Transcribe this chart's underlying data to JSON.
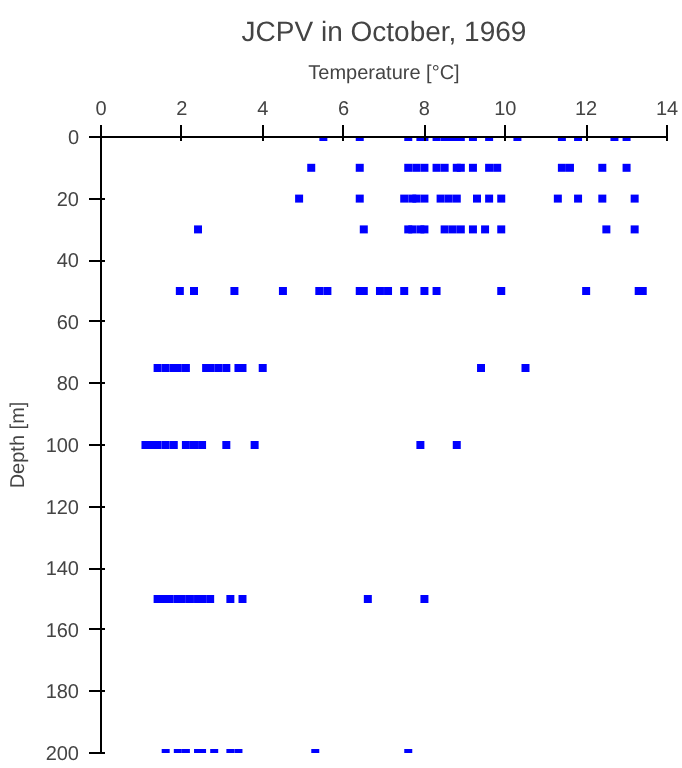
{
  "chart_data": {
    "type": "scatter",
    "title": "JCPV in October, 1969",
    "xlabel": "Temperature [°C]",
    "ylabel": "Depth [m]",
    "marker": "square",
    "grid": false,
    "xlim": [
      0,
      14
    ],
    "ylim": [
      200,
      0
    ],
    "xticks": [
      0,
      2,
      4,
      6,
      8,
      10,
      12,
      14
    ],
    "yticks": [
      0,
      20,
      40,
      60,
      80,
      100,
      120,
      140,
      160,
      180,
      200
    ],
    "series": [
      {
        "color": "#0000ff",
        "x": [
          5.5,
          6.4,
          7.6,
          7.9,
          8.0,
          8.3,
          8.5,
          8.6,
          8.75,
          8.9,
          9.2,
          9.6,
          10.3,
          11.4,
          11.8,
          12.7,
          13.0,
          5.2,
          6.4,
          7.6,
          7.8,
          8.0,
          8.3,
          8.5,
          8.8,
          8.9,
          9.2,
          9.6,
          9.8,
          11.4,
          11.6,
          12.4,
          13.0,
          4.9,
          6.4,
          7.5,
          7.7,
          7.8,
          8.0,
          8.4,
          8.6,
          8.8,
          9.3,
          9.6,
          9.9,
          11.3,
          11.8,
          12.4,
          13.2,
          2.4,
          6.5,
          7.6,
          7.7,
          7.9,
          8.0,
          8.5,
          8.7,
          8.9,
          9.2,
          9.5,
          9.9,
          12.5,
          13.2,
          1.95,
          2.3,
          3.3,
          4.5,
          5.4,
          5.6,
          6.4,
          6.5,
          6.9,
          7.1,
          7.5,
          8.0,
          8.3,
          9.9,
          12.0,
          13.3,
          13.4,
          1.4,
          1.6,
          1.8,
          1.9,
          2.1,
          2.6,
          2.7,
          2.9,
          3.1,
          3.4,
          3.5,
          4.0,
          9.4,
          10.5,
          1.1,
          1.2,
          1.3,
          1.4,
          1.6,
          1.8,
          2.1,
          2.3,
          2.5,
          3.1,
          3.8,
          7.9,
          8.8,
          1.4,
          1.5,
          1.6,
          1.7,
          1.9,
          2.0,
          2.2,
          2.4,
          2.5,
          2.7,
          3.2,
          3.5,
          6.6,
          8.0,
          1.6,
          1.9,
          2.1,
          2.4,
          2.5,
          2.8,
          3.2,
          3.4,
          5.3,
          7.6
        ],
        "values": [
          0,
          0,
          0,
          0,
          0,
          0,
          0,
          0,
          0,
          0,
          0,
          0,
          0,
          0,
          0,
          0,
          0,
          10,
          10,
          10,
          10,
          10,
          10,
          10,
          10,
          10,
          10,
          10,
          10,
          10,
          10,
          10,
          10,
          20,
          20,
          20,
          20,
          20,
          20,
          20,
          20,
          20,
          20,
          20,
          20,
          20,
          20,
          20,
          20,
          30,
          30,
          30,
          30,
          30,
          30,
          30,
          30,
          30,
          30,
          30,
          30,
          30,
          30,
          50,
          50,
          50,
          50,
          50,
          50,
          50,
          50,
          50,
          50,
          50,
          50,
          50,
          50,
          50,
          50,
          50,
          75,
          75,
          75,
          75,
          75,
          75,
          75,
          75,
          75,
          75,
          75,
          75,
          75,
          75,
          100,
          100,
          100,
          100,
          100,
          100,
          100,
          100,
          100,
          100,
          100,
          100,
          100,
          150,
          150,
          150,
          150,
          150,
          150,
          150,
          150,
          150,
          150,
          150,
          150,
          150,
          150,
          200,
          200,
          200,
          200,
          200,
          200,
          200,
          200,
          200,
          200
        ]
      }
    ]
  }
}
